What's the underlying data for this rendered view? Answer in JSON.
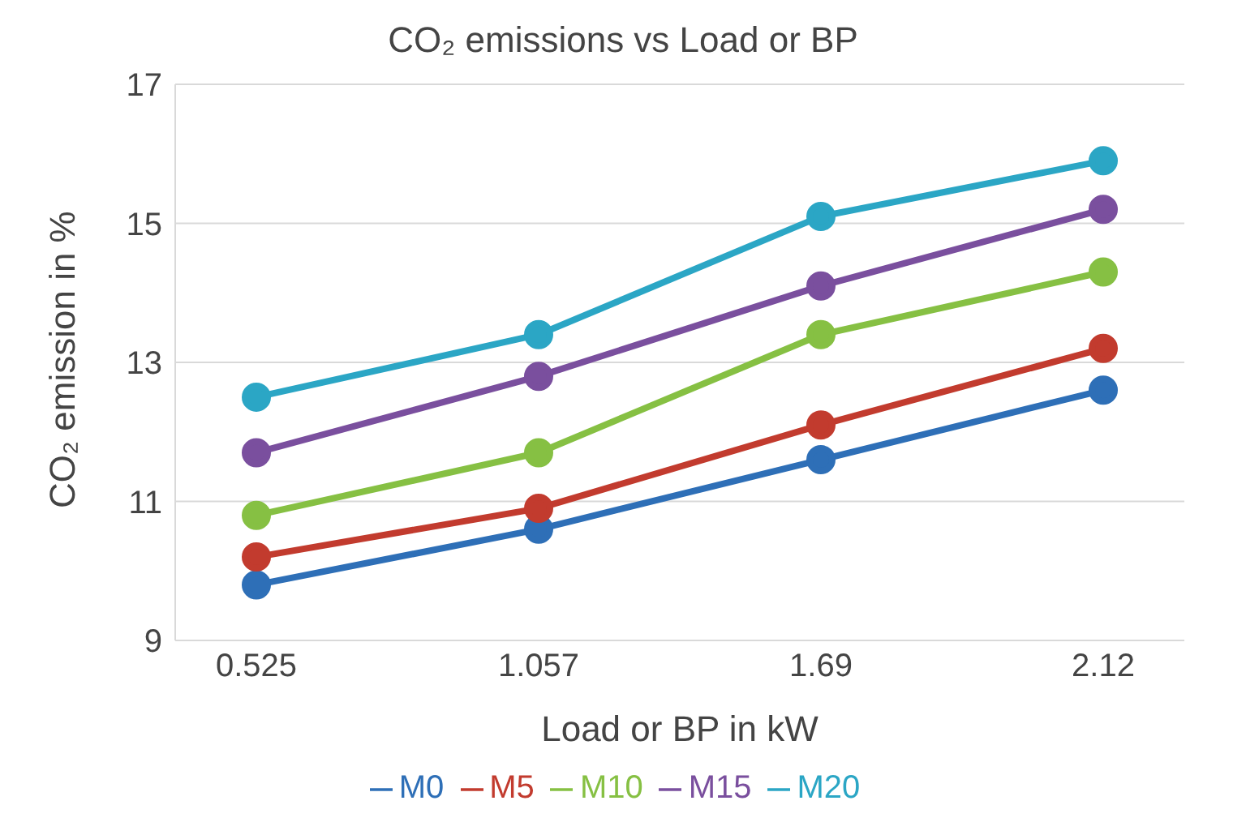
{
  "chart_data": {
    "type": "line",
    "title": "CO₂ emissions vs Load or BP",
    "xlabel": "Load or BP in kW",
    "ylabel": "CO₂ emission in %",
    "categories": [
      "0.525",
      "1.057",
      "1.69",
      "2.12"
    ],
    "series": [
      {
        "name": "M0",
        "color": "#2e6fb7",
        "values": [
          9.8,
          10.6,
          11.6,
          12.6
        ]
      },
      {
        "name": "M5",
        "color": "#c23b2e",
        "values": [
          10.2,
          10.9,
          12.1,
          13.2
        ]
      },
      {
        "name": "M10",
        "color": "#86c043",
        "values": [
          10.8,
          11.7,
          13.4,
          14.3
        ]
      },
      {
        "name": "M15",
        "color": "#7a4f9e",
        "values": [
          11.7,
          12.8,
          14.1,
          15.2
        ]
      },
      {
        "name": "M20",
        "color": "#2ba6c5",
        "values": [
          12.5,
          13.4,
          15.1,
          15.9
        ]
      }
    ],
    "ylim": [
      9,
      17
    ],
    "yticks": [
      9,
      11,
      13,
      15,
      17
    ],
    "grid": "y",
    "legend": "bottom",
    "marker": "circle",
    "line_style": "solid"
  }
}
